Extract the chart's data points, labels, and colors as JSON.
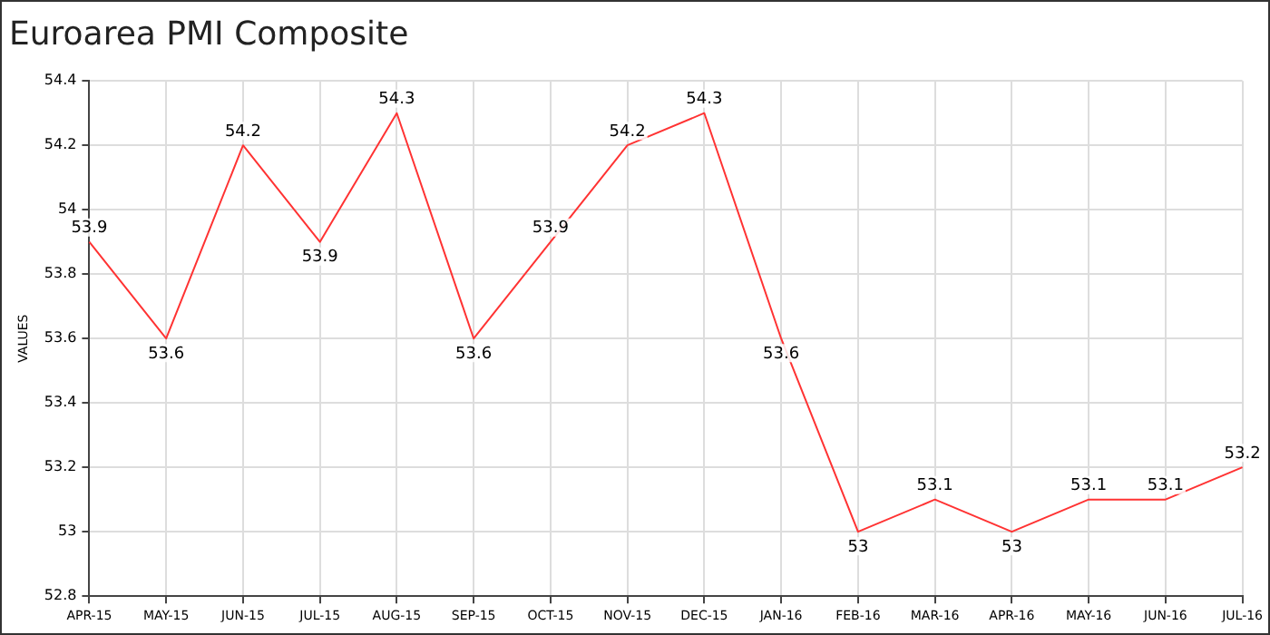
{
  "chart_data": {
    "type": "line",
    "title": "Euroarea PMI Composite",
    "ylabel": "VALUES",
    "categories": [
      "APR-15",
      "MAY-15",
      "JUN-15",
      "JUL-15",
      "AUG-15",
      "SEP-15",
      "OCT-15",
      "NOV-15",
      "DEC-15",
      "JAN-16",
      "FEB-16",
      "MAR-16",
      "APR-16",
      "MAY-16",
      "JUN-16",
      "JUL-16"
    ],
    "series": [
      {
        "color": "#ff3333",
        "values": [
          53.9,
          53.6,
          54.2,
          53.9,
          54.3,
          53.6,
          53.9,
          54.2,
          54.3,
          53.6,
          53,
          53.1,
          53,
          53.1,
          53.1,
          53.2
        ]
      }
    ],
    "ylim": [
      52.8,
      54.4
    ],
    "yticks": [
      52.8,
      53,
      53.2,
      53.4,
      53.6,
      53.8,
      54,
      54.2,
      54.4
    ],
    "grid": true,
    "legend": false,
    "marker": "none",
    "line_style": "solid",
    "data_labels": true
  }
}
